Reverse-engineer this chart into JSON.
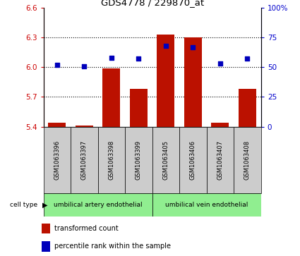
{
  "title": "GDS4778 / 229870_at",
  "samples": [
    "GSM1063396",
    "GSM1063397",
    "GSM1063398",
    "GSM1063399",
    "GSM1063405",
    "GSM1063406",
    "GSM1063407",
    "GSM1063408"
  ],
  "transformed_count": [
    5.44,
    5.41,
    5.99,
    5.78,
    6.33,
    6.3,
    5.44,
    5.78
  ],
  "percentile_rank": [
    52,
    51,
    58,
    57,
    68,
    67,
    53,
    57
  ],
  "cell_type_groups": [
    {
      "label": "umbilical artery endothelial",
      "indices": [
        0,
        1,
        2,
        3
      ]
    },
    {
      "label": "umbilical vein endothelial",
      "indices": [
        4,
        5,
        6,
        7
      ]
    }
  ],
  "ylim_left": [
    5.4,
    6.6
  ],
  "ylim_right": [
    0,
    100
  ],
  "yticks_left": [
    5.4,
    5.7,
    6.0,
    6.3,
    6.6
  ],
  "yticks_right": [
    0,
    25,
    50,
    75,
    100
  ],
  "ytick_labels_right": [
    "0",
    "25",
    "50",
    "75",
    "100%"
  ],
  "bar_color": "#bb1100",
  "dot_color": "#0000bb",
  "bg_color": "#ffffff",
  "sample_box_color": "#cccccc",
  "cell_type_bg": "#90ee90",
  "tick_label_color_left": "#cc0000",
  "tick_label_color_right": "#0000cc",
  "legend_items": [
    "transformed count",
    "percentile rank within the sample"
  ],
  "bar_bottom": 5.4,
  "figure_width": 4.25,
  "figure_height": 3.63
}
